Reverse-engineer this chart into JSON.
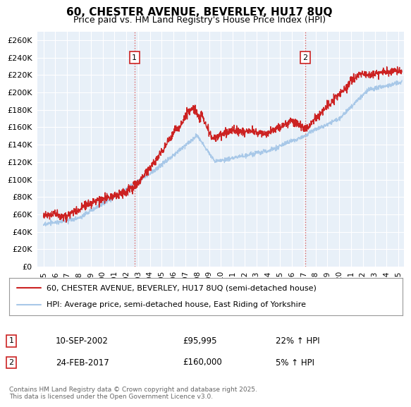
{
  "title": "60, CHESTER AVENUE, BEVERLEY, HU17 8UQ",
  "subtitle": "Price paid vs. HM Land Registry's House Price Index (HPI)",
  "ytick_values": [
    0,
    20000,
    40000,
    60000,
    80000,
    100000,
    120000,
    140000,
    160000,
    180000,
    200000,
    220000,
    240000,
    260000
  ],
  "ylim": [
    0,
    270000
  ],
  "xlim_start": 1994.5,
  "xlim_end": 2025.5,
  "hpi_color": "#a8c8e8",
  "price_color": "#cc2222",
  "dashed_color": "#dd6666",
  "marker1_date": 2002.69,
  "marker1_price": 95995,
  "marker2_date": 2017.12,
  "marker2_price": 160000,
  "legend_line1": "60, CHESTER AVENUE, BEVERLEY, HU17 8UQ (semi-detached house)",
  "legend_line2": "HPI: Average price, semi-detached house, East Riding of Yorkshire",
  "annotation1_date": "10-SEP-2002",
  "annotation1_price": "£95,995",
  "annotation1_hpi": "22% ↑ HPI",
  "annotation2_date": "24-FEB-2017",
  "annotation2_price": "£160,000",
  "annotation2_hpi": "5% ↑ HPI",
  "footer": "Contains HM Land Registry data © Crown copyright and database right 2025.\nThis data is licensed under the Open Government Licence v3.0.",
  "bg_color": "#ffffff",
  "plot_bg_color": "#e8f0f8"
}
